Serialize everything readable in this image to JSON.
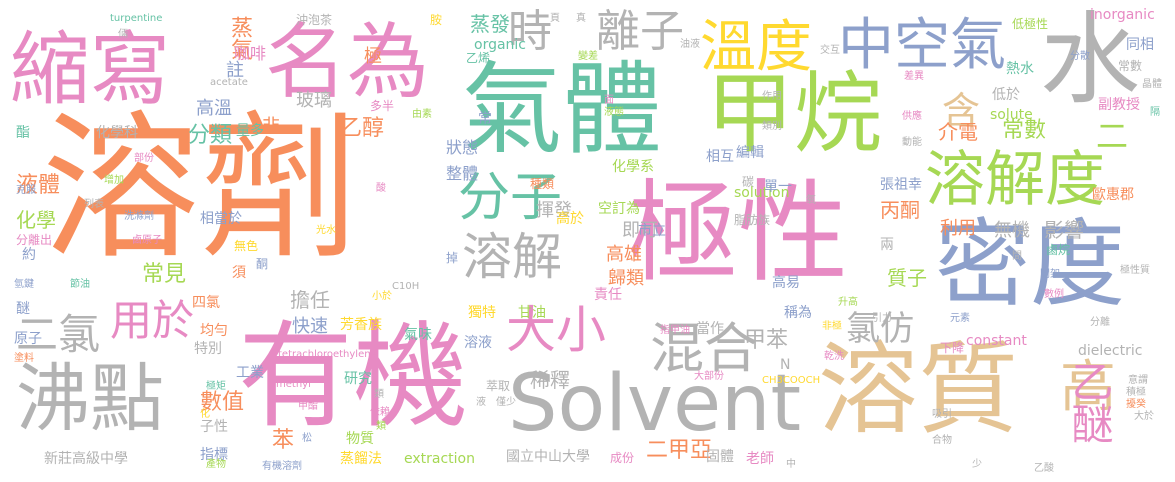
{
  "palette": {
    "orange": "#f78e5c",
    "green": "#66c2a5",
    "blue": "#8da0cb",
    "pink": "#e78ac3",
    "lime": "#a6d854",
    "yellow": "#ffd92f",
    "tan": "#e5c494",
    "gray": "#b3b3b3"
  },
  "words": [
    {
      "text": "溶劑",
      "color": "#f78e5c"
    },
    {
      "text": "極性",
      "color": "#e78ac3"
    },
    {
      "text": "有機",
      "color": "#e78ac3"
    },
    {
      "text": "溶質",
      "color": "#e5c494"
    },
    {
      "text": "氣體",
      "color": "#66c2a5"
    },
    {
      "text": "甲烷",
      "color": "#a6d854"
    },
    {
      "text": "縮寫",
      "color": "#e78ac3"
    },
    {
      "text": "名為",
      "color": "#e78ac3"
    },
    {
      "text": "水",
      "color": "#b3b3b3"
    },
    {
      "text": "密度",
      "color": "#8da0cb"
    },
    {
      "text": "Solvent",
      "color": "#b3b3b3"
    },
    {
      "text": "沸點",
      "color": "#b3b3b3"
    },
    {
      "text": "溶解度",
      "color": "#a6d854"
    },
    {
      "text": "分子",
      "color": "#66c2a5"
    },
    {
      "text": "溫度",
      "color": "#ffd92f"
    },
    {
      "text": "中空氣",
      "color": "#8da0cb"
    },
    {
      "text": "時",
      "color": "#b3b3b3"
    },
    {
      "text": "離子",
      "color": "#b3b3b3"
    },
    {
      "text": "溶解",
      "color": "#b3b3b3"
    },
    {
      "text": "混合",
      "color": "#b3b3b3"
    },
    {
      "text": "大小",
      "color": "#e78ac3"
    },
    {
      "text": "用於",
      "color": "#e78ac3"
    },
    {
      "text": "二氯",
      "color": "#b3b3b3"
    },
    {
      "text": "高",
      "color": "#e5c494"
    },
    {
      "text": "含",
      "color": "#e5c494"
    },
    {
      "text": "乙醚",
      "color": "#e78ac3"
    },
    {
      "text": "氯仿",
      "color": "#b3b3b3"
    },
    {
      "text": "甲苯",
      "color": "#b3b3b3"
    },
    {
      "text": "蒸發",
      "color": "#66c2a5"
    },
    {
      "text": "蒸氣",
      "color": "#f78e5c"
    },
    {
      "text": "玻璃",
      "color": "#b3b3b3"
    },
    {
      "text": "液體",
      "color": "#f78e5c"
    },
    {
      "text": "化學",
      "color": "#a6d854"
    },
    {
      "text": "分類",
      "color": "#66c2a5"
    },
    {
      "text": "常見",
      "color": "#a6d854"
    },
    {
      "text": "二甲亞",
      "color": "#f78e5c"
    },
    {
      "text": "數值",
      "color": "#f78e5c"
    },
    {
      "text": "快速",
      "color": "#8da0cb"
    },
    {
      "text": "乙醇",
      "color": "#f78e5c"
    },
    {
      "text": "常數",
      "color": "#a6d854"
    },
    {
      "text": "介電",
      "color": "#f78e5c"
    },
    {
      "text": "二",
      "color": "#a6d854"
    },
    {
      "text": "無機",
      "color": "#b3b3b3"
    },
    {
      "text": "影響",
      "color": "#b3b3b3"
    },
    {
      "text": "質子",
      "color": "#a6d854"
    },
    {
      "text": "丙酮",
      "color": "#f78e5c"
    },
    {
      "text": "利用",
      "color": "#f78e5c"
    },
    {
      "text": "稀釋",
      "color": "#b3b3b3"
    },
    {
      "text": "擔任",
      "color": "#b3b3b3"
    },
    {
      "text": "揮發",
      "color": "#b3b3b3"
    },
    {
      "text": "即可",
      "color": "#b3b3b3"
    },
    {
      "text": "高雄",
      "color": "#f78e5c"
    },
    {
      "text": "歸類",
      "color": "#f78e5c"
    },
    {
      "text": "整體",
      "color": "#8da0cb"
    },
    {
      "text": "狀態",
      "color": "#8da0cb"
    },
    {
      "text": "極",
      "color": "#f78e5c"
    },
    {
      "text": "註",
      "color": "#8da0cb"
    },
    {
      "text": "非",
      "color": "#f78e5c"
    },
    {
      "text": "量多",
      "color": "#66c2a5"
    },
    {
      "text": "高溫",
      "color": "#8da0cb"
    },
    {
      "text": "咖啡",
      "color": "#e78ac3"
    },
    {
      "text": "solution",
      "color": "#a6d854"
    },
    {
      "text": "solute",
      "color": "#a6d854"
    },
    {
      "text": "inorganic",
      "color": "#e78ac3"
    },
    {
      "text": "organic",
      "color": "#66c2a5"
    },
    {
      "text": "extraction",
      "color": "#a6d854"
    },
    {
      "text": "constant",
      "color": "#e78ac3"
    },
    {
      "text": "dielectric",
      "color": "#b3b3b3"
    },
    {
      "text": "tetrachloroethylene",
      "color": "#e78ac3"
    },
    {
      "text": "acetate",
      "color": "#b3b3b3"
    },
    {
      "text": "turpentine",
      "color": "#66c2a5"
    },
    {
      "text": "methyl",
      "color": "#e78ac3"
    },
    {
      "text": "CH3COOCH",
      "color": "#ffd92f"
    },
    {
      "text": "C10H",
      "color": "#b3b3b3"
    },
    {
      "text": "N",
      "color": "#b3b3b3"
    },
    {
      "text": "新莊高級中學",
      "color": "#b3b3b3"
    },
    {
      "text": "國立中山大學",
      "color": "#b3b3b3"
    },
    {
      "text": "指標",
      "color": "#8da0cb"
    },
    {
      "text": "成份",
      "color": "#e78ac3"
    },
    {
      "text": "固體",
      "color": "#b3b3b3"
    },
    {
      "text": "老師",
      "color": "#e78ac3"
    },
    {
      "text": "甘油",
      "color": "#a6d854"
    },
    {
      "text": "溶液",
      "color": "#8da0cb"
    },
    {
      "text": "獨特",
      "color": "#ffd92f"
    },
    {
      "text": "萃取",
      "color": "#b3b3b3"
    },
    {
      "text": "苯",
      "color": "#f78e5c"
    },
    {
      "text": "子性",
      "color": "#b3b3b3"
    },
    {
      "text": "物質",
      "color": "#a6d854"
    },
    {
      "text": "蒸餾法",
      "color": "#ffd92f"
    },
    {
      "text": "研究",
      "color": "#66c2a5"
    },
    {
      "text": "工業",
      "color": "#8da0cb"
    },
    {
      "text": "原子",
      "color": "#8da0cb"
    },
    {
      "text": "氣味",
      "color": "#66c2a5"
    },
    {
      "text": "芳香族",
      "color": "#ffd92f"
    },
    {
      "text": "均勻",
      "color": "#f78e5c"
    },
    {
      "text": "四氯",
      "color": "#f78e5c"
    },
    {
      "text": "特別",
      "color": "#b3b3b3"
    },
    {
      "text": "須",
      "color": "#f78e5c"
    },
    {
      "text": "約",
      "color": "#8da0cb"
    },
    {
      "text": "相當於",
      "color": "#8da0cb"
    },
    {
      "text": "無色",
      "color": "#ffd92f"
    },
    {
      "text": "分離出",
      "color": "#e78ac3"
    },
    {
      "text": "酮",
      "color": "#8da0cb"
    },
    {
      "text": "掉",
      "color": "#8da0cb"
    },
    {
      "text": "市立",
      "color": "#8da0cb"
    },
    {
      "text": "空訂為",
      "color": "#a6d854"
    },
    {
      "text": "高於",
      "color": "#ffd92f"
    },
    {
      "text": "種類",
      "color": "#f78e5c"
    },
    {
      "text": "化學系",
      "color": "#a6d854"
    },
    {
      "text": "相互",
      "color": "#8da0cb"
    },
    {
      "text": "編輯",
      "color": "#8da0cb"
    },
    {
      "text": "單一",
      "color": "#8da0cb"
    },
    {
      "text": "碳",
      "color": "#b3b3b3"
    },
    {
      "text": "張祖幸",
      "color": "#8da0cb"
    },
    {
      "text": "歐惠郡",
      "color": "#f78e5c"
    },
    {
      "text": "兩",
      "color": "#b3b3b3"
    },
    {
      "text": "鹵烷",
      "color": "#66c2a5"
    },
    {
      "text": "脂肪族",
      "color": "#b3b3b3"
    },
    {
      "text": "責任",
      "color": "#e78ac3"
    },
    {
      "text": "當作",
      "color": "#b3b3b3"
    },
    {
      "text": "高易",
      "color": "#8da0cb"
    },
    {
      "text": "稱為",
      "color": "#8da0cb"
    },
    {
      "text": "下降",
      "color": "#e78ac3"
    },
    {
      "text": "副教授",
      "color": "#e78ac3"
    },
    {
      "text": "同相",
      "color": "#8da0cb"
    },
    {
      "text": "常數",
      "color": "#b3b3b3"
    },
    {
      "text": "低於",
      "color": "#b3b3b3"
    },
    {
      "text": "熱水",
      "color": "#66c2a5"
    },
    {
      "text": "低極性",
      "color": "#a6d854"
    },
    {
      "text": "多半",
      "color": "#e78ac3"
    },
    {
      "text": "化學科",
      "color": "#b3b3b3"
    },
    {
      "text": "酯",
      "color": "#66c2a5"
    },
    {
      "text": "醚",
      "color": "#8da0cb"
    },
    {
      "text": "沖泡茶",
      "color": "#b3b3b3"
    },
    {
      "text": "胺",
      "color": "#ffd92f"
    },
    {
      "text": "乙烯",
      "color": "#66c2a5"
    },
    {
      "text": "部份",
      "color": "#e78ac3"
    },
    {
      "text": "增加",
      "color": "#a6d854"
    },
    {
      "text": "克服",
      "color": "#8da0cb"
    },
    {
      "text": "洗滌劑",
      "color": "#8da0cb"
    },
    {
      "text": "鹵原子",
      "color": "#e78ac3"
    },
    {
      "text": "光水",
      "color": "#ffd92f"
    },
    {
      "text": "節油",
      "color": "#66c2a5"
    },
    {
      "text": "小於",
      "color": "#ffd92f"
    },
    {
      "text": "氫鍵",
      "color": "#8da0cb"
    },
    {
      "text": "塗料",
      "color": "#f78e5c"
    },
    {
      "text": "極矩",
      "color": "#66c2a5"
    },
    {
      "text": "甲酯",
      "color": "#e78ac3"
    },
    {
      "text": "依賴",
      "color": "#e78ac3"
    },
    {
      "text": "類",
      "color": "#a6d854"
    },
    {
      "text": "產物",
      "color": "#a6d854"
    },
    {
      "text": "有機溶劑",
      "color": "#8da0cb"
    },
    {
      "text": "松",
      "color": "#8da0cb"
    },
    {
      "text": "液",
      "color": "#b3b3b3"
    },
    {
      "text": "僅少",
      "color": "#b3b3b3"
    },
    {
      "text": "大部份",
      "color": "#e78ac3"
    },
    {
      "text": "指甲油",
      "color": "#e78ac3"
    },
    {
      "text": "吸引",
      "color": "#b3b3b3"
    },
    {
      "text": "合物",
      "color": "#b3b3b3"
    },
    {
      "text": "乙酸",
      "color": "#b3b3b3"
    },
    {
      "text": "意謂",
      "color": "#b3b3b3"
    },
    {
      "text": "積極",
      "color": "#b3b3b3"
    },
    {
      "text": "擾癸",
      "color": "#f78e5c"
    },
    {
      "text": "大於",
      "color": "#b3b3b3"
    },
    {
      "text": "乾洗",
      "color": "#e78ac3"
    },
    {
      "text": "元素",
      "color": "#8da0cb"
    },
    {
      "text": "升高",
      "color": "#a6d854"
    },
    {
      "text": "非極",
      "color": "#ffd92f"
    },
    {
      "text": "引力",
      "color": "#b3b3b3"
    },
    {
      "text": "分離",
      "color": "#b3b3b3"
    },
    {
      "text": "開架",
      "color": "#8da0cb"
    },
    {
      "text": "數例",
      "color": "#e78ac3"
    },
    {
      "text": "極性質",
      "color": "#b3b3b3"
    },
    {
      "text": "間",
      "color": "#b3b3b3"
    },
    {
      "text": "動能",
      "color": "#b3b3b3"
    },
    {
      "text": "供應",
      "color": "#e78ac3"
    },
    {
      "text": "差異",
      "color": "#e78ac3"
    },
    {
      "text": "交互",
      "color": "#b3b3b3"
    },
    {
      "text": "油液",
      "color": "#b3b3b3"
    },
    {
      "text": "變差",
      "color": "#a6d854"
    },
    {
      "text": "作用",
      "color": "#b3b3b3"
    },
    {
      "text": "類別",
      "color": "#b3b3b3"
    },
    {
      "text": "真",
      "color": "#b3b3b3"
    },
    {
      "text": "面",
      "color": "#e78ac3"
    },
    {
      "text": "液態",
      "color": "#a6d854"
    },
    {
      "text": "常",
      "color": "#8da0cb"
    },
    {
      "text": "由素",
      "color": "#a6d854"
    },
    {
      "text": "酸",
      "color": "#e78ac3"
    },
    {
      "text": "晶體",
      "color": "#b3b3b3"
    },
    {
      "text": "分散",
      "color": "#8da0cb"
    },
    {
      "text": "隔",
      "color": "#66c2a5"
    },
    {
      "text": "列表",
      "color": "#b3b3b3"
    },
    {
      "text": "倆",
      "color": "#b3b3b3"
    },
    {
      "text": "化",
      "color": "#ffd92f"
    },
    {
      "text": "類",
      "color": "#b3b3b3"
    },
    {
      "text": "頁",
      "color": "#b3b3b3"
    },
    {
      "text": "中",
      "color": "#b3b3b3"
    },
    {
      "text": "少",
      "color": "#b3b3b3"
    },
    {
      "text": "氧",
      "color": "#b3b3b3"
    }
  ]
}
